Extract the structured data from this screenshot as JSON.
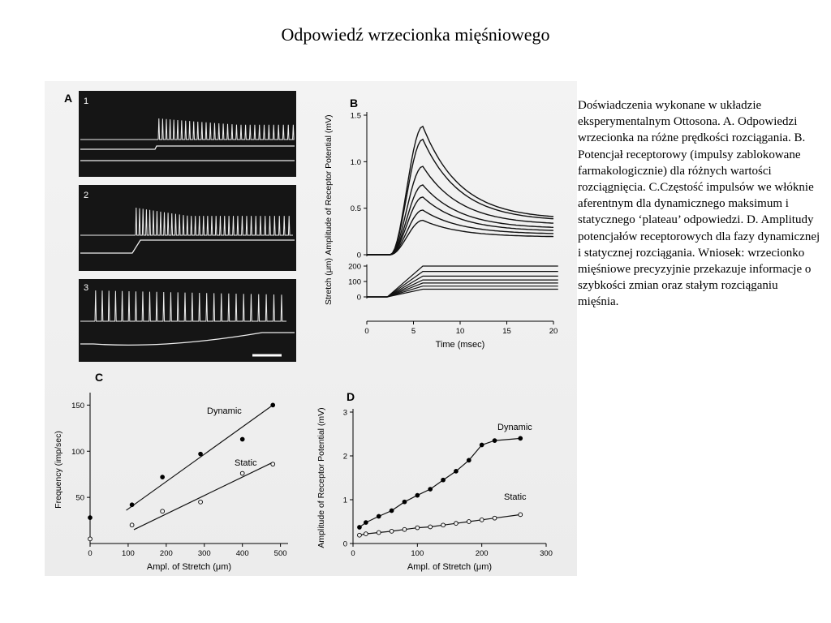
{
  "slide": {
    "title": "Odpowiedź wrzecionka mięśniowego",
    "caption": "Doświadczenia wykonane w układzie eksperymentalnym Ottosona. A. Odpowiedzi wrzecionka na różne prędkości rozciągania. B. Potencjał receptorowy (impulsy zablokowane farmakologicznie) dla różnych wartości rozciągnięcia. C.Częstość impulsów we włóknie aferentnym dla dynamicznego maksimum i statycznego ‘plateau’ odpowiedzi. D. Amplitudy potencjałów receptorowych dla fazy dynamicznej i statycznej rozciągania. Wniosek: wrzecionko mięśniowe precyzyjnie przekazuje informacje o szybkości zmian oraz stałym rozciąganiu mięśnia."
  },
  "figure": {
    "panel_a": {
      "label": "A",
      "traces": [
        "1",
        "2",
        "3"
      ]
    },
    "panel_b": {
      "label": "B"
    },
    "panel_c": {
      "label": "C"
    },
    "panel_d": {
      "label": "D"
    }
  },
  "chart_data": [
    {
      "type": "line",
      "panel": "B",
      "ylabel": "Amplitude of Receptor Potential (mV)",
      "yticks": [
        "0",
        "0.5",
        "1.0",
        "1.5"
      ],
      "ylim": [
        0,
        1.5
      ],
      "xlabel": "Time (msec)",
      "xticks": [
        "0",
        "5",
        "10",
        "15",
        "20"
      ],
      "xlim": [
        0,
        20
      ],
      "series": [
        {
          "peak": 1.38,
          "plateau": 0.38
        },
        {
          "peak": 1.24,
          "plateau": 0.36
        },
        {
          "peak": 0.95,
          "plateau": 0.32
        },
        {
          "peak": 0.75,
          "plateau": 0.28
        },
        {
          "peak": 0.62,
          "plateau": 0.25
        },
        {
          "peak": 0.48,
          "plateau": 0.22
        },
        {
          "peak": 0.37,
          "plateau": 0.19
        }
      ]
    },
    {
      "type": "line",
      "panel": "B-stretch",
      "ylabel": "Stretch (μm)",
      "yticks": [
        "0",
        "100",
        "200"
      ],
      "ylim": [
        0,
        200
      ],
      "xlim": [
        0,
        20
      ],
      "series": [
        {
          "plateau": 200
        },
        {
          "plateau": 165
        },
        {
          "plateau": 135
        },
        {
          "plateau": 110
        },
        {
          "plateau": 90
        },
        {
          "plateau": 70
        },
        {
          "plateau": 50
        }
      ]
    },
    {
      "type": "scatter",
      "panel": "C",
      "ylabel": "Frequency (imp/sec)",
      "xlabel": "Ampl. of Stretch (μm)",
      "xticks": [
        "0",
        "100",
        "200",
        "300",
        "400",
        "500"
      ],
      "yticks": [
        "50",
        "100",
        "150"
      ],
      "xlim": [
        0,
        520
      ],
      "ylim": [
        0,
        160
      ],
      "series": [
        {
          "name": "Dynamic",
          "x": [
            0,
            110,
            190,
            290,
            400,
            480
          ],
          "y": [
            28,
            42,
            72,
            97,
            113,
            150
          ]
        },
        {
          "name": "Static",
          "x": [
            0,
            110,
            190,
            290,
            400,
            480
          ],
          "y": [
            5,
            20,
            35,
            45,
            76,
            86
          ]
        }
      ]
    },
    {
      "type": "scatter",
      "panel": "D",
      "ylabel": "Amplitude of Receptor Potential (mV)",
      "xlabel": "Ampl. of Stretch (μm)",
      "xticks": [
        "0",
        "100",
        "200",
        "300"
      ],
      "yticks": [
        "0",
        "1",
        "2",
        "3"
      ],
      "xlim": [
        0,
        300
      ],
      "ylim": [
        0,
        3
      ],
      "series": [
        {
          "name": "Dynamic",
          "x": [
            10,
            20,
            40,
            60,
            80,
            100,
            120,
            140,
            160,
            180,
            200,
            220,
            260
          ],
          "y": [
            0.37,
            0.48,
            0.62,
            0.75,
            0.95,
            1.1,
            1.24,
            1.45,
            1.65,
            1.9,
            2.25,
            2.35,
            2.4
          ]
        },
        {
          "name": "Static",
          "x": [
            10,
            20,
            40,
            60,
            80,
            100,
            120,
            140,
            160,
            180,
            200,
            220,
            260
          ],
          "y": [
            0.19,
            0.22,
            0.25,
            0.28,
            0.32,
            0.36,
            0.38,
            0.42,
            0.46,
            0.5,
            0.54,
            0.58,
            0.66
          ]
        }
      ]
    }
  ]
}
